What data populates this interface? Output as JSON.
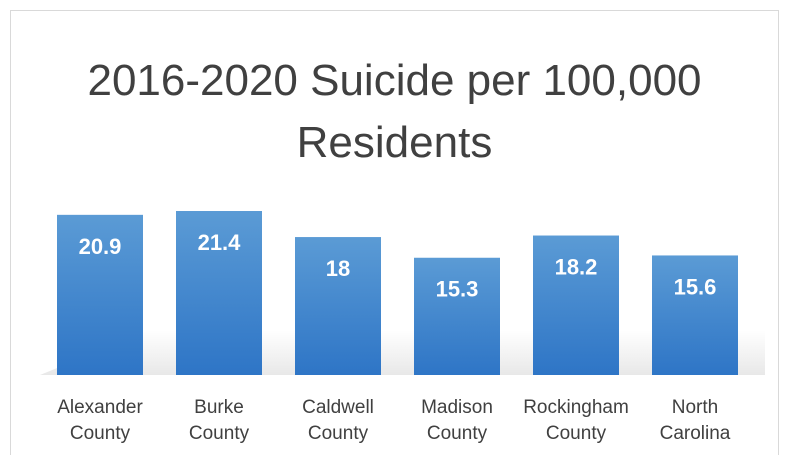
{
  "chart_data": {
    "type": "bar",
    "title": "2016-2020 Suicide per 100,000 Residents",
    "categories": [
      "Alexander County",
      "Burke County",
      "Caldwell County",
      "Madison County",
      "Rockingham County",
      "North Carolina"
    ],
    "category_lines": [
      [
        "Alexander",
        "County"
      ],
      [
        "Burke",
        "County"
      ],
      [
        "Caldwell",
        "County"
      ],
      [
        "Madison",
        "County"
      ],
      [
        "Rockingham",
        "County"
      ],
      [
        "North",
        "Carolina"
      ]
    ],
    "values": [
      20.9,
      21.4,
      18,
      15.3,
      18.2,
      15.6
    ],
    "data_labels": [
      "20.9",
      "21.4",
      "18",
      "15.3",
      "18.2",
      "15.6"
    ],
    "ylim": [
      0,
      25
    ],
    "grid": false,
    "legend": "none",
    "colors": {
      "bar_top": "#5b9bd5",
      "bar_bottom": "#2e75c6",
      "data_label": "#ffffff",
      "axis_text": "#404040",
      "title": "#404040"
    }
  }
}
